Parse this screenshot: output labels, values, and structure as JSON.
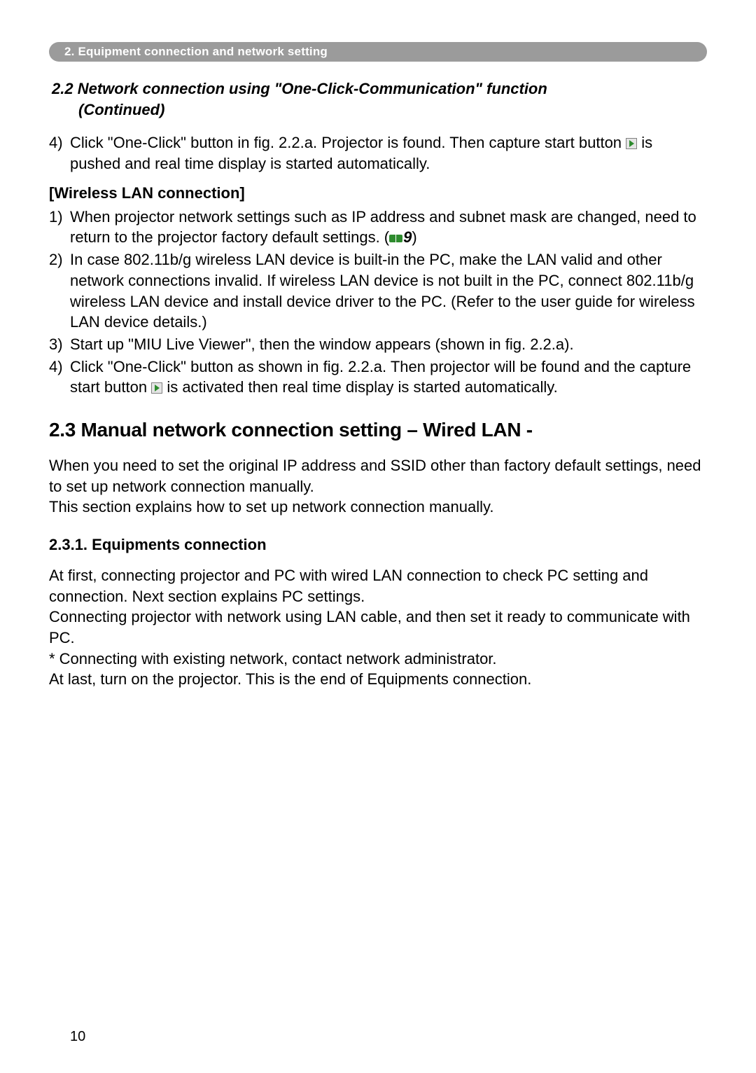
{
  "header_bar": "2. Equipment connection and network setting",
  "cont_title_line1": "2.2 Network connection using \"One-Click-Communication\" function",
  "cont_title_line2": "(Continued)",
  "item4a_num": "4)",
  "item4a_text_1": "Click \"One-Click\" button in fig. 2.2.a. Projector is found. Then capture start button ",
  "item4a_text_2": " is pushed and real time display is started automatically.",
  "wlan_head": "[Wireless LAN connection]",
  "w1_num": "1)",
  "w1_text_1": "When projector network settings such as IP address and subnet mask are changed, need to return to the projector factory default settings. (",
  "w1_ref": "9",
  "w1_text_2": ")",
  "w2_num": "2)",
  "w2_text": "In case 802.11b/g wireless LAN device is built-in the PC, make the LAN valid and other network connections invalid. If wireless LAN device is not built in the PC, connect 802.11b/g wireless LAN device and install device driver to the PC. (Refer to the user guide for wireless LAN device details.)",
  "w3_num": "3)",
  "w3_text": "Start up \"MIU Live Viewer\", then the window appears (shown in fig. 2.2.a).",
  "w4_num": "4)",
  "w4_text_1": "Click \"One-Click\" button as shown in fig. 2.2.a. Then projector will be found and the capture start button ",
  "w4_text_2": " is activated then real time display is started automatically.",
  "h2_3": "2.3 Manual network connection setting – Wired LAN -",
  "p2_3a": "When you need to set the original IP address and SSID other than factory default settings, need to set up network connection manually.",
  "p2_3b": "This section explains how to set up network connection manually.",
  "h3_231": "2.3.1. Equipments connection",
  "p231a": "At first, connecting projector and PC with wired LAN connection to check PC setting and connection. Next section explains PC settings.",
  "p231b": "Connecting projector with network using LAN cable, and then set it ready to communicate with PC.",
  "p231c": "* Connecting with existing network, contact network administrator.",
  "p231d": "At last, turn on the projector. This is the end of Equipments connection.",
  "page_number": "10",
  "colors": {
    "header_bg": "#9b9b9b",
    "header_text": "#ffffff",
    "body_text": "#000000",
    "icon_green": "#2e8b2e"
  }
}
